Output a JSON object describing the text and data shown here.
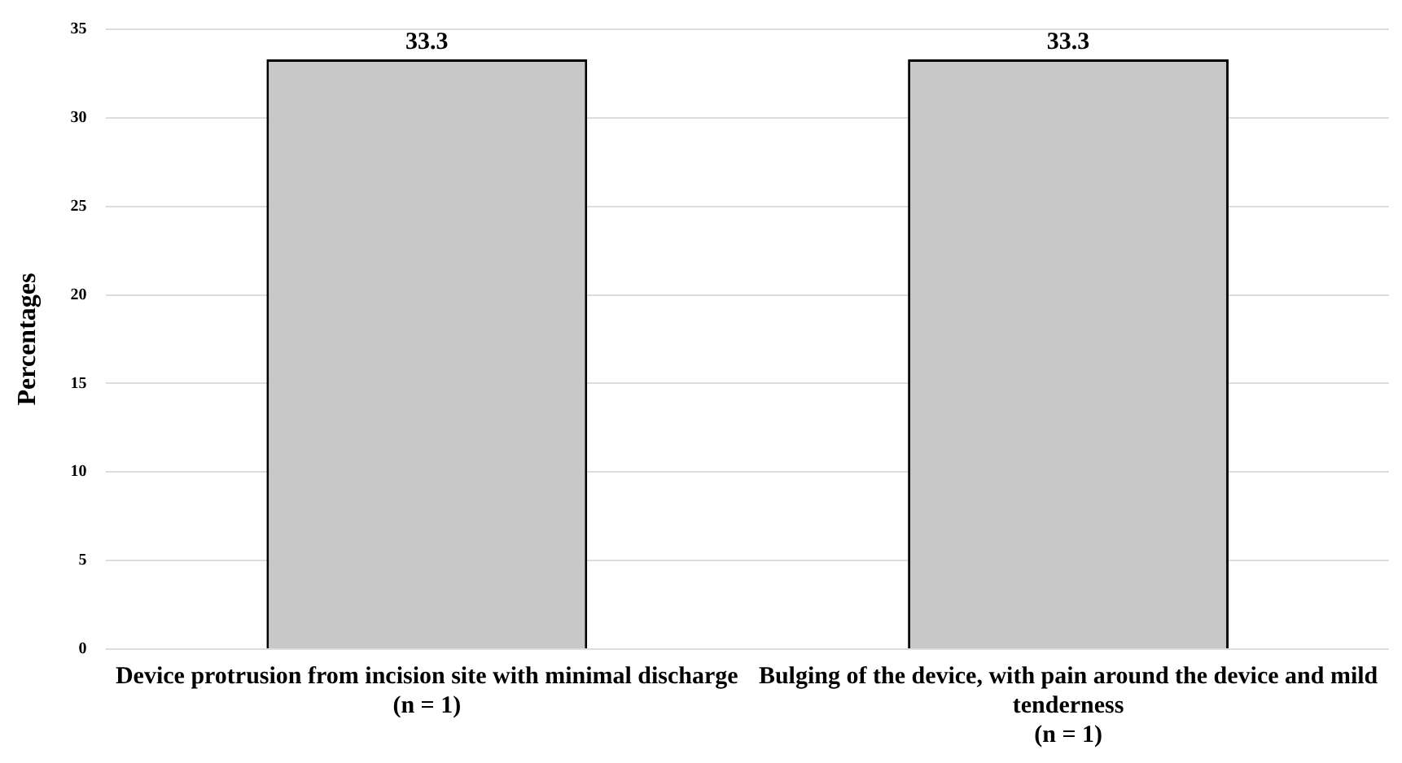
{
  "chart_data": {
    "type": "bar",
    "ylabel": "Percentages",
    "categories": [
      "Device protrusion from incision site with minimal discharge\n(n = 1)",
      "Bulging of the device, with pain around the device and mild\ntenderness\n(n = 1)"
    ],
    "values": [
      33.3,
      33.3
    ],
    "color": "#c8c8c8",
    "ylim": [
      0,
      35
    ],
    "yticks": [
      0,
      5,
      10,
      15,
      20,
      25,
      30,
      35
    ],
    "grid": "y",
    "data_labels": true,
    "legend": false
  }
}
